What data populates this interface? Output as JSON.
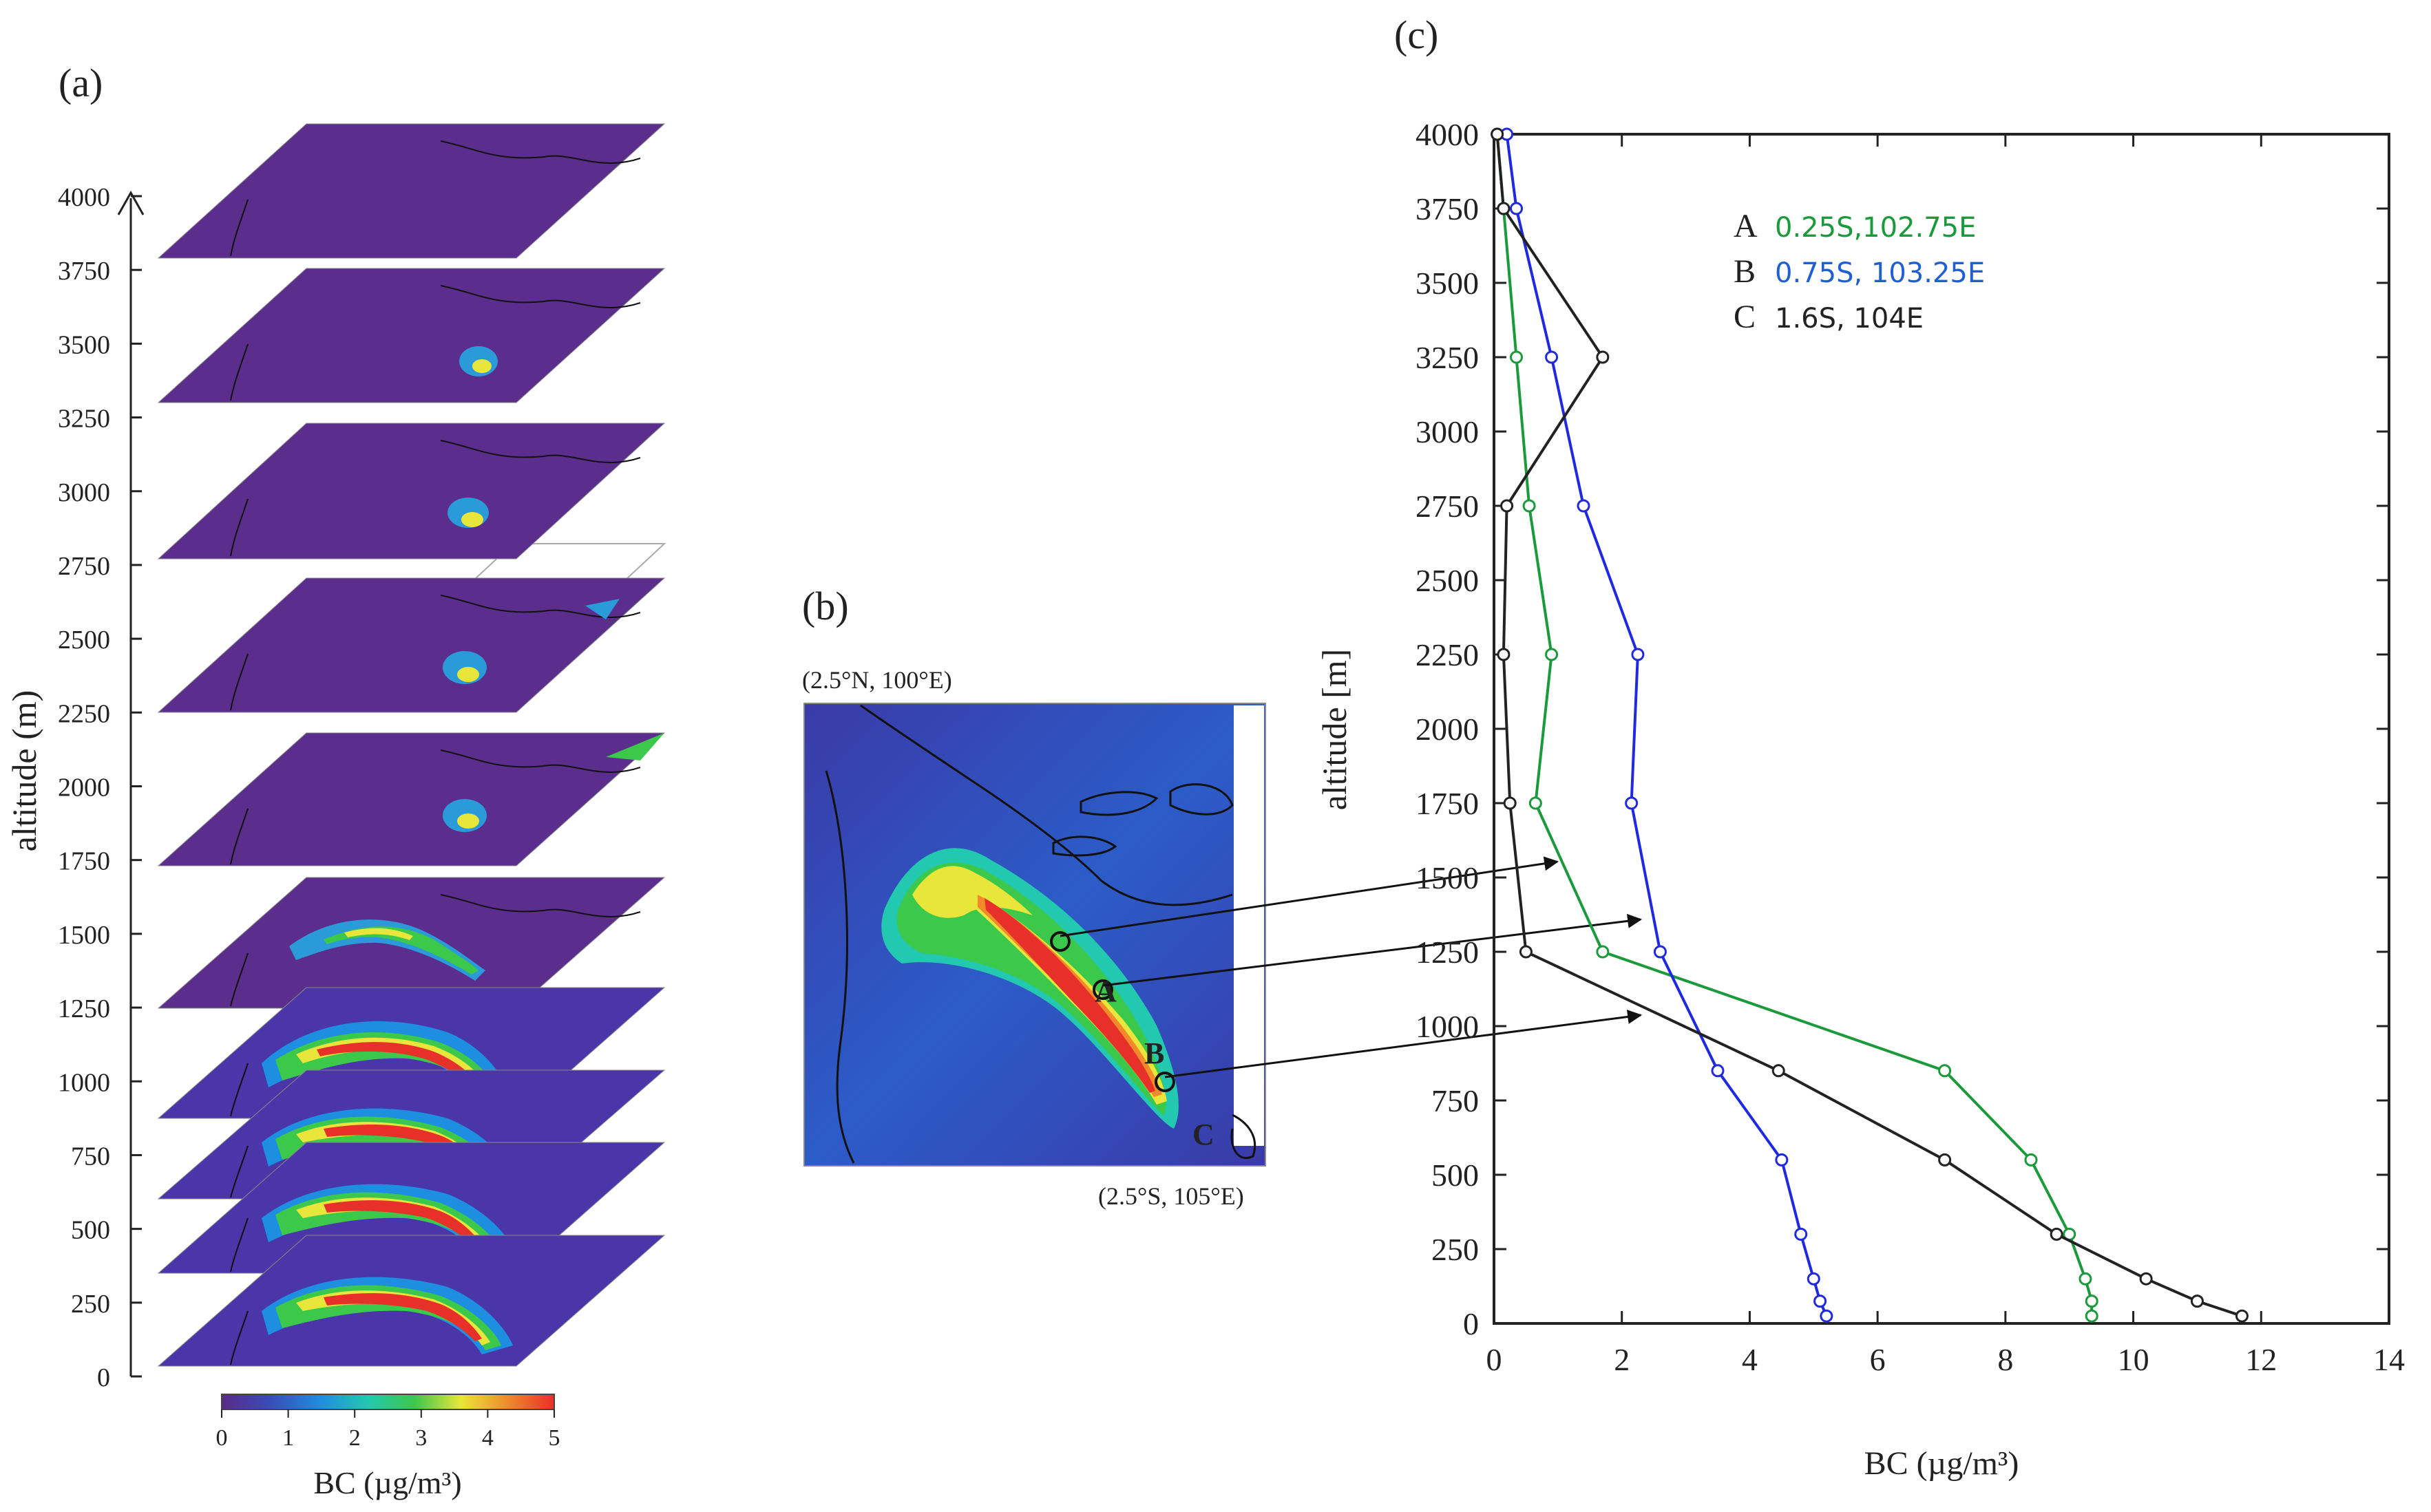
{
  "panels": {
    "a": {
      "label": "(a)",
      "ylabel": "altitude  (m)",
      "yticks": [
        "0",
        "250",
        "500",
        "750",
        "1000",
        "1250",
        "1500",
        "1750",
        "2000",
        "2250",
        "2500",
        "2750",
        "3000",
        "3250",
        "3500",
        "3750",
        "4000"
      ],
      "colorbar": {
        "ticks": [
          "0",
          "1",
          "2",
          "3",
          "4",
          "5"
        ],
        "label": "BC (µg/m³)",
        "range": [
          0,
          5
        ]
      },
      "layer_altitudes_m": [
        4000,
        3500,
        3000,
        2500,
        2000,
        1500,
        1000,
        750,
        500,
        250
      ]
    },
    "b": {
      "label": "(b)",
      "corner_nw": "(2.5°N, 100°E)",
      "corner_se": "(2.5°S, 105°E)",
      "points": [
        "A",
        "B",
        "C"
      ]
    },
    "c": {
      "label": "(c)",
      "xlabel": "BC (µg/m³)",
      "ylabel": "altitude [m]"
    }
  },
  "colors": {
    "A": "#1a9a3a",
    "B": "#1f2ae0",
    "C": "#222222",
    "colormap": [
      "#5a2a8a",
      "#3a4ab8",
      "#1e8ee0",
      "#22c8b0",
      "#3cc84a",
      "#e8e63a",
      "#f08a2a",
      "#e8302a"
    ]
  },
  "chart_data": {
    "type": "line",
    "title": "",
    "xlabel": "BC (µg/m³)",
    "ylabel": "altitude [m]",
    "xlim": [
      0,
      14
    ],
    "ylim": [
      0,
      4000
    ],
    "xticks": [
      0,
      2,
      4,
      6,
      8,
      10,
      12,
      14
    ],
    "yticks": [
      0,
      250,
      500,
      750,
      1000,
      1250,
      1500,
      1750,
      2000,
      2250,
      2500,
      2750,
      3000,
      3250,
      3500,
      3750,
      4000
    ],
    "legend": [
      {
        "key": "A",
        "text": "0.25S,102.75E",
        "color": "#1a9a3a"
      },
      {
        "key": "B",
        "text": "0.75S, 103.25E",
        "color": "#1f5fd0"
      },
      {
        "key": "C",
        "text": "1.6S, 104E",
        "color": "#222222"
      }
    ],
    "series": [
      {
        "name": "A",
        "color": "#1a9a3a",
        "points": [
          [
            9.35,
            25
          ],
          [
            9.35,
            75
          ],
          [
            9.25,
            150
          ],
          [
            9.0,
            300
          ],
          [
            8.4,
            550
          ],
          [
            7.05,
            850
          ],
          [
            1.7,
            1250
          ],
          [
            0.65,
            1750
          ],
          [
            0.9,
            2250
          ],
          [
            0.55,
            2750
          ],
          [
            0.35,
            3250
          ],
          [
            0.15,
            3750
          ],
          [
            0.05,
            4000
          ]
        ]
      },
      {
        "name": "B",
        "color": "#1f2ae0",
        "points": [
          [
            5.2,
            25
          ],
          [
            5.1,
            75
          ],
          [
            5.0,
            150
          ],
          [
            4.8,
            300
          ],
          [
            4.5,
            550
          ],
          [
            3.5,
            850
          ],
          [
            2.6,
            1250
          ],
          [
            2.15,
            1750
          ],
          [
            2.25,
            2250
          ],
          [
            1.4,
            2750
          ],
          [
            0.9,
            3250
          ],
          [
            0.35,
            3750
          ],
          [
            0.2,
            4000
          ]
        ]
      },
      {
        "name": "C",
        "color": "#222222",
        "points": [
          [
            11.7,
            25
          ],
          [
            11.0,
            75
          ],
          [
            10.2,
            150
          ],
          [
            8.8,
            300
          ],
          [
            7.05,
            550
          ],
          [
            4.45,
            850
          ],
          [
            0.5,
            1250
          ],
          [
            0.25,
            1750
          ],
          [
            0.15,
            2250
          ],
          [
            0.2,
            2750
          ],
          [
            1.7,
            3250
          ],
          [
            0.15,
            3750
          ],
          [
            0.05,
            4000
          ]
        ]
      }
    ]
  }
}
